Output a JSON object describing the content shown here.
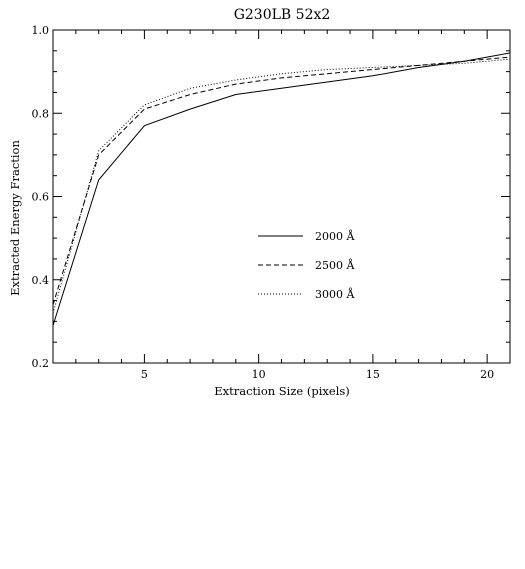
{
  "chart_data": {
    "type": "line",
    "title": "G230LB   52x2",
    "xlabel": "Extraction Size (pixels)",
    "ylabel": "Extracted Energy Fraction",
    "xlim": [
      1,
      21
    ],
    "ylim": [
      0.2,
      1.0
    ],
    "x_ticks": [
      5,
      10,
      15,
      20
    ],
    "y_ticks": [
      0.2,
      0.4,
      0.6,
      0.8,
      1.0
    ],
    "x_tick_labels": [
      "5",
      "10",
      "15",
      "20"
    ],
    "y_tick_labels": [
      "0.2",
      "0.4",
      "0.6",
      "0.8",
      "1.0"
    ],
    "grid": false,
    "legend_position": "center-right",
    "series": [
      {
        "name": "2000 Å",
        "style": "solid",
        "x": [
          1,
          3,
          5,
          7,
          9,
          11,
          13,
          15,
          17,
          19,
          21
        ],
        "y": [
          0.29,
          0.64,
          0.77,
          0.81,
          0.845,
          0.86,
          0.875,
          0.89,
          0.91,
          0.925,
          0.945
        ]
      },
      {
        "name": "2500 Å",
        "style": "dashed",
        "x": [
          1,
          3,
          5,
          7,
          9,
          11,
          13,
          15,
          17,
          19,
          21
        ],
        "y": [
          0.34,
          0.7,
          0.81,
          0.845,
          0.87,
          0.885,
          0.895,
          0.905,
          0.915,
          0.925,
          0.935
        ]
      },
      {
        "name": "3000 Å",
        "style": "dotted",
        "x": [
          1,
          3,
          5,
          7,
          9,
          11,
          13,
          15,
          17,
          19,
          21
        ],
        "y": [
          0.32,
          0.71,
          0.82,
          0.86,
          0.88,
          0.895,
          0.905,
          0.91,
          0.915,
          0.92,
          0.93
        ]
      }
    ]
  }
}
